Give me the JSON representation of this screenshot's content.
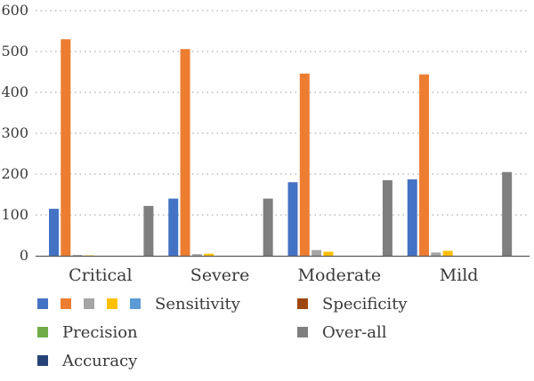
{
  "chart_data": {
    "type": "bar",
    "title": "",
    "xlabel": "",
    "ylabel": "",
    "ylim": [
      0,
      600
    ],
    "yticks": [
      "0",
      "100",
      "200",
      "300",
      "400",
      "500",
      "600"
    ],
    "grid": "horizontal-dotted",
    "categories": [
      "Critical",
      "Severe",
      "Moderate",
      "Mild"
    ],
    "series": [
      {
        "name": "",
        "color": "#4472c4",
        "values": [
          115,
          140,
          180,
          187
        ]
      },
      {
        "name": "",
        "color": "#ed7d31",
        "values": [
          530,
          506,
          446,
          444
        ]
      },
      {
        "name": "",
        "color": "#a5a5a5",
        "values": [
          2,
          4,
          14,
          8
        ]
      },
      {
        "name": "",
        "color": "#ffc000",
        "values": [
          1,
          5,
          10,
          12
        ]
      },
      {
        "name": "Sensitivity",
        "color": "#5b9bd5",
        "values": [
          0,
          0,
          0,
          0
        ]
      },
      {
        "name": "Precision",
        "color": "#70ad47",
        "values": [
          0,
          0,
          0,
          0
        ]
      },
      {
        "name": "Accuracy",
        "color": "#264478",
        "values": [
          0,
          0,
          0,
          0
        ]
      },
      {
        "name": "Specificity",
        "color": "#9e480e",
        "values": [
          0,
          0,
          0,
          0
        ]
      },
      {
        "name": "Over-all",
        "color": "#7f7f7f",
        "values": [
          122,
          140,
          185,
          205
        ]
      }
    ],
    "legend": {
      "position": "bottom",
      "entries": [
        {
          "label": "Sensitivity",
          "swatches": [
            "#4472c4",
            "#ed7d31",
            "#a5a5a5",
            "#ffc000",
            "#5b9bd5"
          ]
        },
        {
          "label": "Specificity",
          "swatches": [
            "#9e480e"
          ]
        },
        {
          "label": "Precision",
          "swatches": [
            "#70ad47"
          ]
        },
        {
          "label": "Over-all",
          "swatches": [
            "#7f7f7f"
          ]
        },
        {
          "label": "Accuracy",
          "swatches": [
            "#264478"
          ]
        }
      ]
    }
  }
}
